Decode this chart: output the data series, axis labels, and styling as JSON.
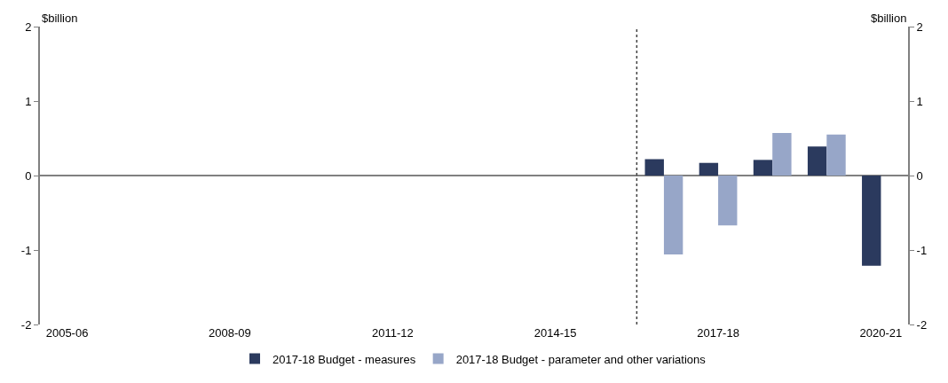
{
  "chart_data": {
    "type": "bar",
    "categories": [
      "2005-06",
      null,
      null,
      "2008-09",
      null,
      null,
      "2011-12",
      null,
      null,
      "2014-15",
      null,
      null,
      "2017-18",
      null,
      null,
      "2020-21"
    ],
    "series": [
      {
        "name": "2017-18 Budget - measures",
        "color": "#2b3a5e",
        "values": [
          null,
          null,
          null,
          null,
          null,
          null,
          null,
          null,
          null,
          null,
          null,
          0.22,
          0.17,
          0.21,
          0.39,
          -1.21
        ]
      },
      {
        "name": "2017-18 Budget - parameter and other variations",
        "color": "#97a6c8",
        "values": [
          null,
          null,
          null,
          null,
          null,
          null,
          null,
          null,
          null,
          null,
          null,
          -1.06,
          -0.67,
          0.57,
          0.55,
          null
        ]
      }
    ],
    "ylabel": "$billion",
    "y2label": "$billion",
    "ylim": [
      -2,
      2
    ],
    "yticks": [
      -2,
      -1,
      0,
      1,
      2
    ],
    "y2lim": [
      -2,
      2
    ],
    "y2ticks": [
      -2,
      -1,
      0,
      1,
      2
    ],
    "legend": "bottom"
  }
}
